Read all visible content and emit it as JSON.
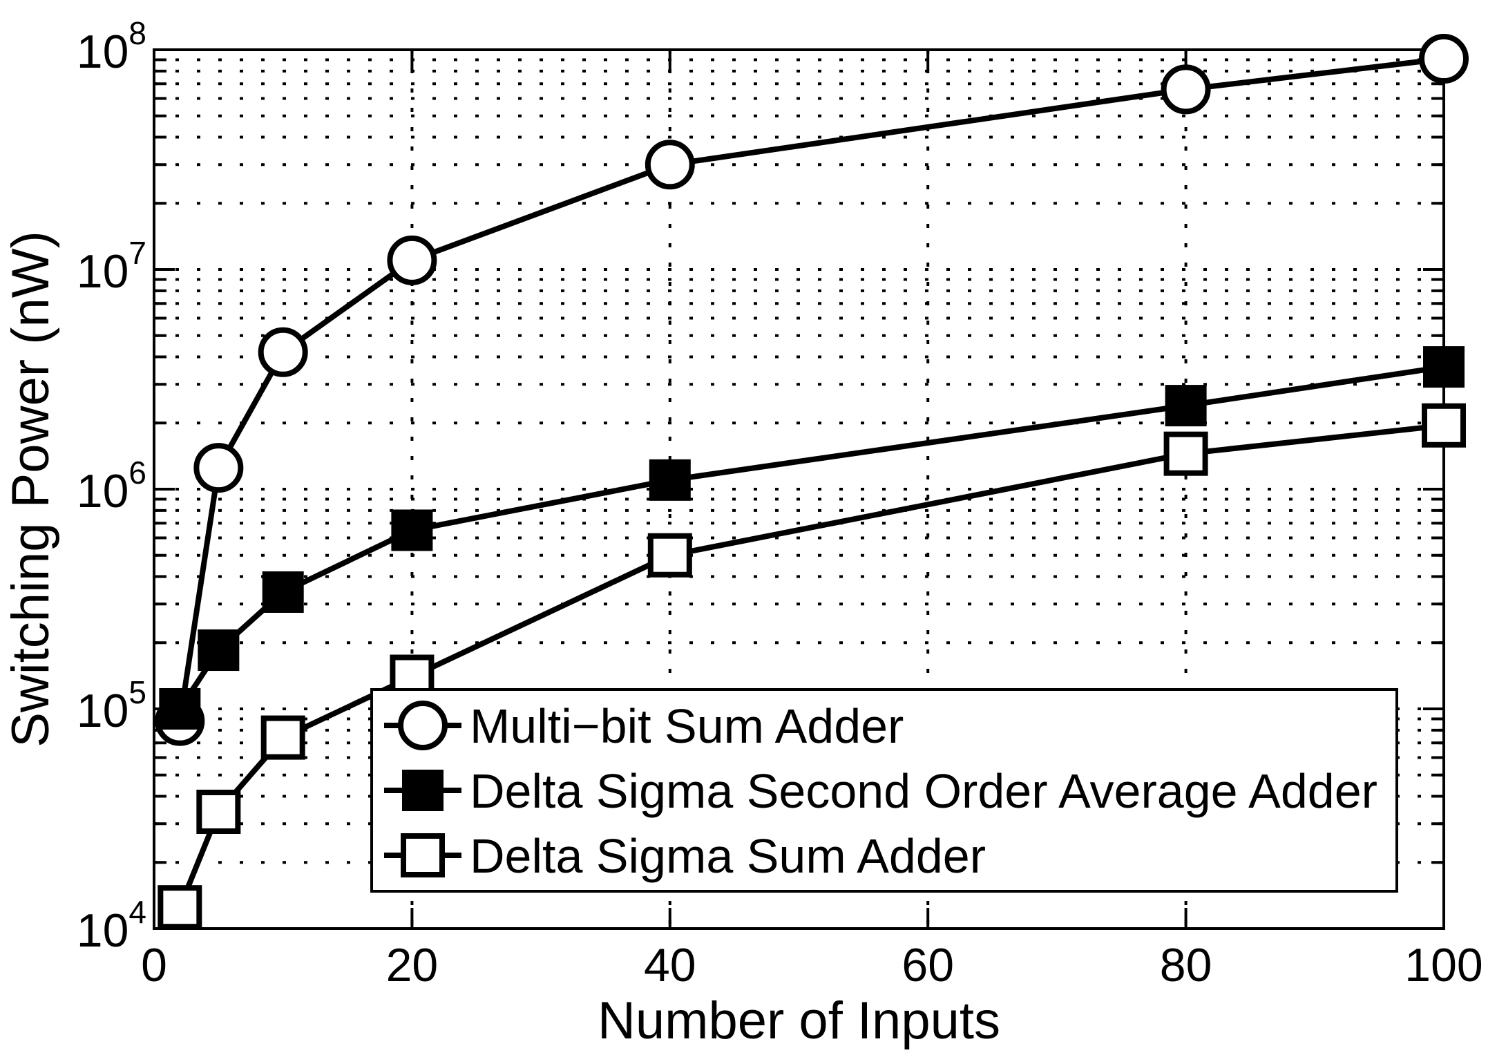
{
  "chart_data": {
    "type": "line",
    "title": "",
    "xlabel": "Number of Inputs",
    "ylabel": "Switching Power (nW)",
    "x_scale": "linear",
    "y_scale": "log",
    "xlim": [
      0,
      100
    ],
    "x_ticks": [
      0,
      20,
      40,
      60,
      80,
      100
    ],
    "y_tick_exponents": [
      4,
      5,
      6,
      7,
      8
    ],
    "ylim_exponents": [
      4,
      8
    ],
    "grid": "on",
    "legend_position": "inside-lower-middle",
    "colors": {
      "foreground": "#000000",
      "background": "#ffffff"
    },
    "x": [
      2,
      5,
      10,
      20,
      40,
      80,
      100
    ],
    "series": [
      {
        "name": "Multi−bit Sum Adder",
        "marker": "circle-open",
        "values": [
          88000,
          1250000,
          4200000,
          11000000,
          30000000,
          66000000,
          91000000
        ]
      },
      {
        "name": "Delta Sigma Second Order Average Adder",
        "marker": "square-filled",
        "values": [
          100000,
          185000,
          340000,
          650000,
          1100000,
          2400000,
          3600000
        ]
      },
      {
        "name": "Delta Sigma Sum Adder",
        "marker": "square-open",
        "values": [
          12500,
          34000,
          74000,
          140000,
          500000,
          1450000,
          1950000
        ]
      }
    ]
  }
}
